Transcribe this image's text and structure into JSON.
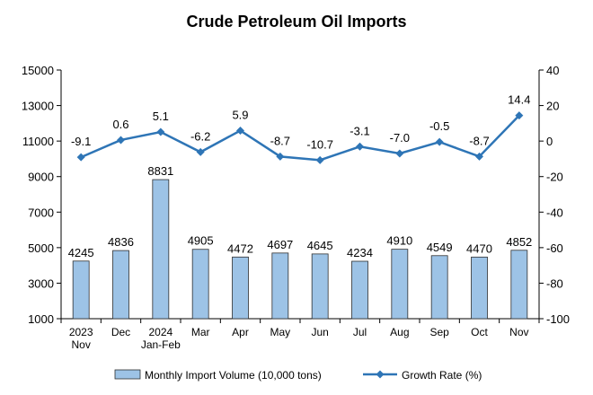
{
  "chart_data": {
    "type": "bar",
    "title": "Crude Petroleum Oil Imports",
    "categories": [
      [
        "2023",
        "Nov"
      ],
      [
        "Dec"
      ],
      [
        "2024",
        "Jan-Feb"
      ],
      [
        "Mar"
      ],
      [
        "Apr"
      ],
      [
        "May"
      ],
      [
        "Jun"
      ],
      [
        "Jul"
      ],
      [
        "Aug"
      ],
      [
        "Sep"
      ],
      [
        "Oct"
      ],
      [
        "Nov"
      ]
    ],
    "series": [
      {
        "name": "Monthly Import Volume (10,000 tons)",
        "type": "bar",
        "axis": "left",
        "values": [
          4245,
          4836,
          8831,
          4905,
          4472,
          4697,
          4645,
          4234,
          4910,
          4549,
          4470,
          4852
        ],
        "labels": [
          "4245",
          "4836",
          "8831",
          "4905",
          "4472",
          "4697",
          "4645",
          "4234",
          "4910",
          "4549",
          "4470",
          "4852"
        ]
      },
      {
        "name": "Growth Rate (%)",
        "type": "line",
        "axis": "right",
        "values": [
          -9.1,
          0.6,
          5.1,
          -6.2,
          5.9,
          -8.7,
          -10.7,
          -3.1,
          -7.0,
          -0.5,
          -8.7,
          14.4
        ],
        "labels": [
          "-9.1",
          "0.6",
          "5.1",
          "-6.2",
          "5.9",
          "-8.7",
          "-10.7",
          "-3.1",
          "-7.0",
          "-0.5",
          "-8.7",
          "14.4"
        ]
      }
    ],
    "y_left": {
      "ylim": [
        1000,
        15000
      ],
      "ticks": [
        "1000",
        "3000",
        "5000",
        "7000",
        "9000",
        "11000",
        "13000",
        "15000"
      ]
    },
    "y_right": {
      "ylim": [
        -100,
        40
      ],
      "ticks": [
        "-100",
        "-80",
        "-60",
        "-40",
        "-20",
        "0",
        "20",
        "40"
      ]
    },
    "grid": false,
    "legend_position": "bottom",
    "colors": {
      "bar_fill": "#9dc3e6",
      "bar_stroke": "#2f2f2f",
      "line": "#2e75b6",
      "axis": "#000000"
    }
  }
}
